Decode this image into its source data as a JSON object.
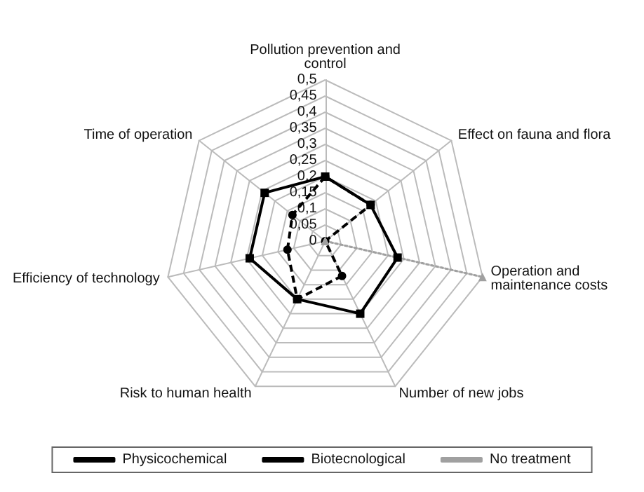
{
  "chart_data": {
    "type": "radar",
    "categories": [
      "Pollution prevention and control",
      "Effect on fauna and flora",
      "Operation and maintenance costs",
      "Number of new jobs",
      "Risk to human health",
      "Efficiency of technology",
      "Time of operation"
    ],
    "series": [
      {
        "name": "Physicochemical",
        "color": "#000000",
        "line_style": "dashed",
        "marker": "circle",
        "values": [
          0.2,
          0.18,
          0,
          0.12,
          0.2,
          0.12,
          0.13
        ]
      },
      {
        "name": "Biotecnological",
        "color": "#000000",
        "line_style": "solid",
        "marker": "square",
        "values": [
          0.2,
          0.18,
          0.23,
          0.25,
          0.2,
          0.24,
          0.24
        ]
      },
      {
        "name": "No treatment",
        "color": "#a0a0a0",
        "line_style": "dotted",
        "marker": "triangle",
        "values": [
          0,
          0,
          0.5,
          0,
          0,
          0,
          0
        ]
      }
    ],
    "ylim": [
      0,
      0.5
    ],
    "yticks": [
      {
        "value": 0,
        "label": "0"
      },
      {
        "value": 0.05,
        "label": "0,05"
      },
      {
        "value": 0.1,
        "label": "0,1"
      },
      {
        "value": 0.15,
        "label": "0,15"
      },
      {
        "value": 0.2,
        "label": "0,2"
      },
      {
        "value": 0.25,
        "label": "0,25"
      },
      {
        "value": 0.3,
        "label": "0,3"
      },
      {
        "value": 0.35,
        "label": "0,35"
      },
      {
        "value": 0.4,
        "label": "0,4"
      },
      {
        "value": 0.45,
        "label": "0,45"
      },
      {
        "value": 0.5,
        "label": "0,5"
      }
    ],
    "grid": true,
    "legend": "bottom"
  }
}
